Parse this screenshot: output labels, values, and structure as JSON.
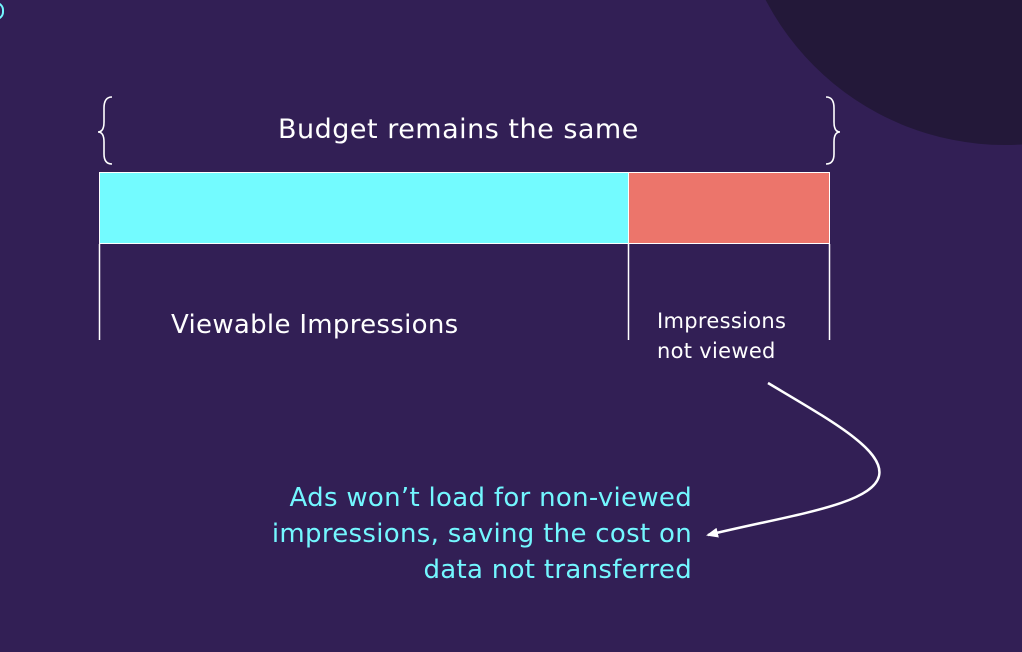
{
  "diagram": {
    "budget_label": "Budget remains the same",
    "segments": [
      {
        "label": "Viewable Impressions",
        "share": 0.725,
        "color": "#73FBFF"
      },
      {
        "label": "Impressions not viewed",
        "share": 0.275,
        "color": "#EC756B"
      }
    ],
    "note": "Ads won’t load for non-viewed impressions, saving the cost on data not transferred"
  },
  "colors": {
    "background": "#321F55",
    "corner_shape": "#231839",
    "accent": "#73F7FF",
    "line": "#FFFFFF"
  }
}
